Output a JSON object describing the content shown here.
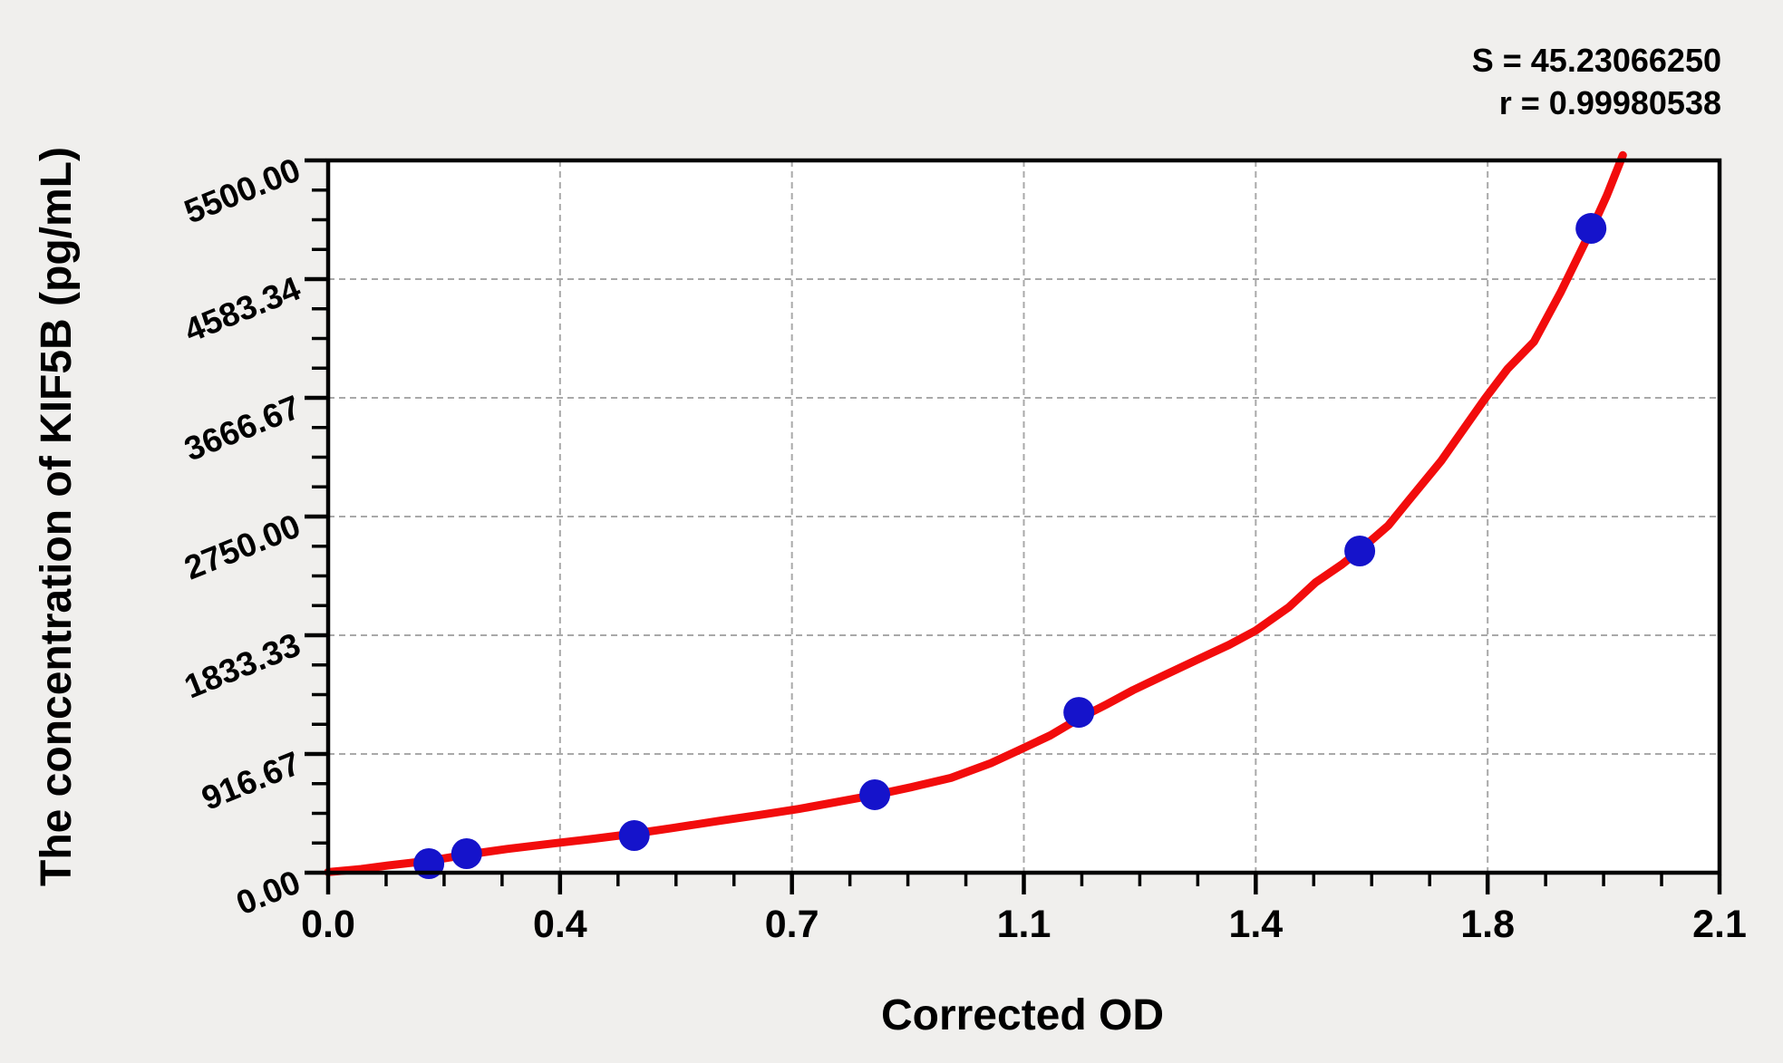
{
  "stats": {
    "s_label": "S = 45.23066250",
    "r_label": "r = 0.99980538"
  },
  "chart_data": {
    "type": "scatter",
    "title": "",
    "xlabel": "Corrected OD",
    "ylabel": "The concentration of KIF5B (pg/mL)",
    "xlim": [
      0,
      2.1
    ],
    "ylim": [
      0,
      5500
    ],
    "grid": "dashed gridlines at major ticks, both axes",
    "legend_position": "none",
    "x_tick_values": [
      0,
      0.35,
      0.7,
      1.05,
      1.4,
      1.75,
      2.1
    ],
    "x_tick_labels": [
      "0.0",
      "0.4",
      "0.7",
      "1.1",
      "1.4",
      "1.8",
      "2.1"
    ],
    "y_tick_values": [
      0,
      916.67,
      1833.33,
      2750,
      3666.67,
      4583.34,
      5500
    ],
    "y_tick_labels": [
      "0.00",
      "916.67",
      "1833.33",
      "2750.00",
      "3666.67",
      "4583.34",
      "5500.00"
    ],
    "minor_divisions_per_major": 4,
    "fit_statistics": {
      "S": "45.23066250",
      "r": "0.99980538"
    },
    "series": [
      {
        "name": "standard points",
        "type": "scatter",
        "color": "#1513cb",
        "marker_radius_px": 17,
        "points": [
          [
            0.152,
            70
          ],
          [
            0.209,
            147
          ],
          [
            0.462,
            287
          ],
          [
            0.825,
            602
          ],
          [
            1.133,
            1238
          ],
          [
            1.557,
            2484
          ],
          [
            1.906,
            4975
          ]
        ]
      },
      {
        "name": "fitted curve",
        "type": "line",
        "color": "#f20c0c",
        "stroke_width_px": 9,
        "points": [
          [
            0.0,
            5
          ],
          [
            0.05,
            28
          ],
          [
            0.09,
            55
          ],
          [
            0.152,
            92
          ],
          [
            0.21,
            140
          ],
          [
            0.27,
            183
          ],
          [
            0.34,
            226
          ],
          [
            0.4,
            262
          ],
          [
            0.46,
            300
          ],
          [
            0.52,
            345
          ],
          [
            0.59,
            400
          ],
          [
            0.65,
            445
          ],
          [
            0.71,
            492
          ],
          [
            0.77,
            548
          ],
          [
            0.825,
            600
          ],
          [
            0.88,
            660
          ],
          [
            0.94,
            732
          ],
          [
            1.0,
            845
          ],
          [
            1.04,
            940
          ],
          [
            1.09,
            1060
          ],
          [
            1.133,
            1190
          ],
          [
            1.175,
            1300
          ],
          [
            1.215,
            1410
          ],
          [
            1.26,
            1520
          ],
          [
            1.31,
            1640
          ],
          [
            1.36,
            1760
          ],
          [
            1.4,
            1870
          ],
          [
            1.45,
            2050
          ],
          [
            1.49,
            2240
          ],
          [
            1.53,
            2380
          ],
          [
            1.557,
            2490
          ],
          [
            1.6,
            2680
          ],
          [
            1.63,
            2870
          ],
          [
            1.68,
            3180
          ],
          [
            1.746,
            3660
          ],
          [
            1.78,
            3890
          ],
          [
            1.82,
            4100
          ],
          [
            1.86,
            4480
          ],
          [
            1.906,
            4960
          ],
          [
            1.93,
            5230
          ],
          [
            1.954,
            5540
          ]
        ]
      }
    ]
  },
  "colors": {
    "background": "#f0efed",
    "plot_background": "#ffffff",
    "axis": "#000000",
    "gridline": "#a9a9a9",
    "curve": "#f20c0c",
    "points": "#1513cb",
    "text": "#000000"
  }
}
